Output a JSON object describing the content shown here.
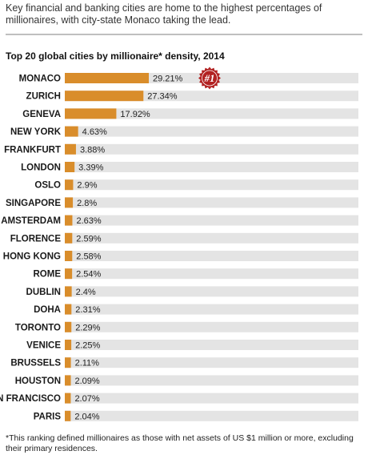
{
  "headline": "Key financial and banking cities are home to the highest percentages of millionaires, with city-state Monaco taking the lead.",
  "footnote": "*This ranking defined millionaires as those with net assets of US $1 million or more, excluding their primary residences.",
  "badge": {
    "text": "#1",
    "icon": "rank-seal-icon",
    "color": "#b22222"
  },
  "colors": {
    "bar": "#d98d2b",
    "track": "#e4e4e4",
    "badge": "#b22222"
  },
  "chart_data": {
    "type": "bar",
    "orientation": "horizontal",
    "title": "Top 20 global cities by millionaire* density, 2014",
    "xlabel": "",
    "ylabel": "",
    "xlim": [
      0,
      100
    ],
    "grid": false,
    "legend": "none",
    "categories": [
      "MONACO",
      "ZURICH",
      "GENEVA",
      "NEW YORK",
      "FRANKFURT",
      "LONDON",
      "OSLO",
      "SINGAPORE",
      "AMSTERDAM",
      "FLORENCE",
      "HONG KONG",
      "ROME",
      "DUBLIN",
      "DOHA",
      "TORONTO",
      "VENICE",
      "BRUSSELS",
      "HOUSTON",
      "SAN FRANCISCO",
      "PARIS"
    ],
    "values": [
      29.21,
      27.34,
      17.92,
      4.63,
      3.88,
      3.39,
      2.9,
      2.8,
      2.63,
      2.59,
      2.58,
      2.54,
      2.4,
      2.31,
      2.29,
      2.25,
      2.11,
      2.09,
      2.07,
      2.04
    ],
    "value_labels": [
      "29.21%",
      "27.34%",
      "17.92%",
      "4.63%",
      "3.88%",
      "3.39%",
      "2.9%",
      "2.8%",
      "2.63%",
      "2.59%",
      "2.58%",
      "2.54%",
      "2.4%",
      "2.31%",
      "2.29%",
      "2.25%",
      "2.11%",
      "2.09%",
      "2.07%",
      "2.04%"
    ]
  }
}
